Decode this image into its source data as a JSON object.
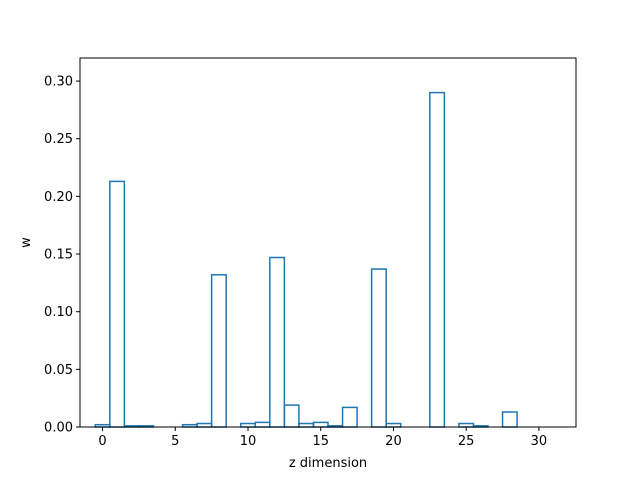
{
  "chart_data": {
    "type": "bar",
    "style": "step-outline",
    "xlabel": "z dimension",
    "ylabel": "w",
    "xlim": [
      -1.55,
      32.55
    ],
    "ylim": [
      0,
      0.32
    ],
    "xticks": [
      0,
      5,
      10,
      15,
      20,
      25,
      30
    ],
    "yticks": [
      0.0,
      0.05,
      0.1,
      0.15,
      0.2,
      0.25,
      0.3
    ],
    "ytick_labels": [
      "0.00",
      "0.05",
      "0.10",
      "0.15",
      "0.20",
      "0.25",
      "0.30"
    ],
    "x": [
      0,
      1,
      2,
      3,
      4,
      5,
      6,
      7,
      8,
      9,
      10,
      11,
      12,
      13,
      14,
      15,
      16,
      17,
      18,
      19,
      20,
      21,
      22,
      23,
      24,
      25,
      26,
      27,
      28,
      29,
      30,
      31
    ],
    "values": [
      0.002,
      0.213,
      0.001,
      0.001,
      0.0,
      0.0,
      0.002,
      0.003,
      0.132,
      0.0,
      0.003,
      0.004,
      0.147,
      0.019,
      0.003,
      0.004,
      0.001,
      0.017,
      0.0,
      0.137,
      0.003,
      0.0,
      0.0,
      0.29,
      0.0,
      0.003,
      0.001,
      0.0,
      0.013,
      0.0,
      0.0,
      0.0
    ],
    "color": "#1f77b4",
    "grid": false
  }
}
